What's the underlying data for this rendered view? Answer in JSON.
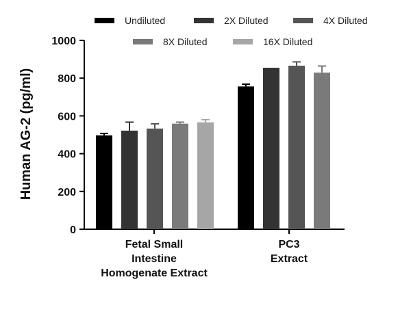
{
  "chart_data": {
    "type": "bar",
    "title": "",
    "xlabel": "",
    "ylabel": "Human AG-2 (pg/ml)",
    "ylim": [
      0,
      1000
    ],
    "yticks": [
      0,
      200,
      400,
      600,
      800,
      1000
    ],
    "categories": [
      [
        "Fetal Small",
        "Intestine",
        "Homogenate Extract"
      ],
      [
        "PC3",
        "Extract"
      ]
    ],
    "series": [
      {
        "name": "Undiluted",
        "color": "#000000",
        "values": [
          497,
          756
        ],
        "errors": [
          10,
          12
        ]
      },
      {
        "name": "2X Diluted",
        "color": "#333333",
        "values": [
          522,
          855
        ],
        "errors": [
          45,
          0
        ]
      },
      {
        "name": "4X Diluted",
        "color": "#555555",
        "values": [
          533,
          866
        ],
        "errors": [
          25,
          20
        ]
      },
      {
        "name": "8X Diluted",
        "color": "#7a7a7a",
        "values": [
          559,
          829
        ],
        "errors": [
          8,
          35
        ]
      },
      {
        "name": "16X Diluted",
        "color": "#a6a6a6",
        "values": [
          566,
          0
        ],
        "errors": [
          14,
          0
        ]
      }
    ],
    "legend_position": "top"
  }
}
